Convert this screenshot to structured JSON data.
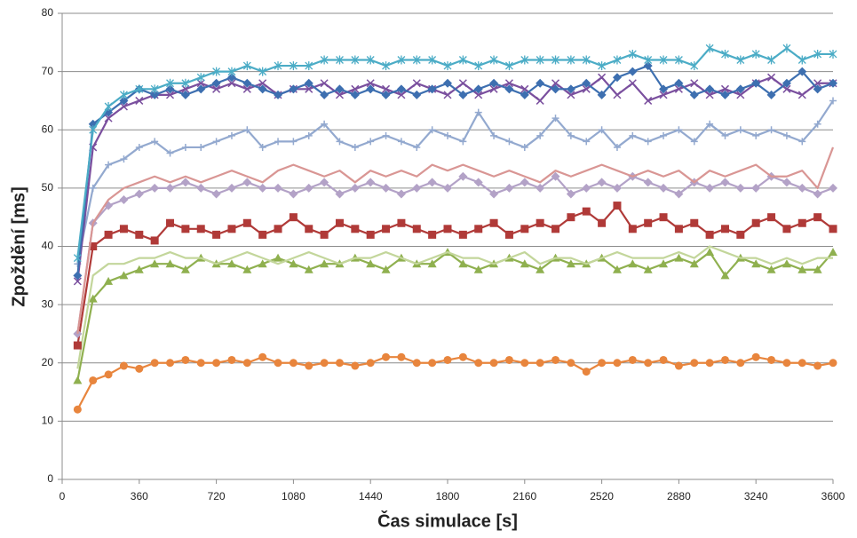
{
  "chart_data": {
    "type": "line",
    "x_label": "Čas simulace [s]",
    "y_label": "Zpoždění [ms]",
    "xlim": [
      0,
      3600
    ],
    "xticks": [
      0,
      360,
      720,
      1080,
      1440,
      1800,
      2160,
      2520,
      2880,
      3240,
      3600
    ],
    "ylim": [
      0,
      80
    ],
    "yticks": [
      0,
      10,
      20,
      30,
      40,
      50,
      60,
      70,
      80
    ],
    "grid": true,
    "x": [
      72,
      144,
      216,
      288,
      360,
      432,
      504,
      576,
      648,
      720,
      792,
      864,
      936,
      1008,
      1080,
      1152,
      1224,
      1296,
      1368,
      1440,
      1512,
      1584,
      1656,
      1728,
      1800,
      1872,
      1944,
      2016,
      2088,
      2160,
      2232,
      2304,
      2376,
      2448,
      2520,
      2592,
      2664,
      2736,
      2808,
      2880,
      2952,
      3024,
      3096,
      3168,
      3240,
      3312,
      3384,
      3456,
      3528,
      3600
    ],
    "series": [
      {
        "color": "#4bacc6",
        "marker": "star",
        "values": [
          38,
          60,
          64,
          66,
          67,
          67,
          68,
          68,
          69,
          70,
          70,
          71,
          70,
          71,
          71,
          71,
          72,
          72,
          72,
          72,
          71,
          72,
          72,
          72,
          71,
          72,
          71,
          72,
          71,
          72,
          72,
          72,
          72,
          72,
          71,
          72,
          73,
          72,
          72,
          72,
          71,
          74,
          73,
          72,
          73,
          72,
          74,
          72,
          73,
          73
        ]
      },
      {
        "color": "#3d6fb0",
        "marker": "diamond",
        "values": [
          35,
          61,
          63,
          65,
          67,
          66,
          67,
          66,
          67,
          68,
          69,
          68,
          67,
          66,
          67,
          68,
          66,
          67,
          66,
          67,
          66,
          67,
          66,
          67,
          68,
          66,
          67,
          68,
          67,
          66,
          68,
          67,
          67,
          68,
          66,
          69,
          70,
          71,
          67,
          68,
          66,
          67,
          66,
          67,
          68,
          66,
          68,
          70,
          67,
          68
        ]
      },
      {
        "color": "#7a4f9e",
        "marker": "x",
        "values": [
          34,
          57,
          62,
          64,
          65,
          66,
          66,
          67,
          68,
          67,
          68,
          67,
          68,
          66,
          67,
          67,
          68,
          66,
          67,
          68,
          67,
          66,
          68,
          67,
          66,
          68,
          66,
          67,
          68,
          67,
          65,
          68,
          66,
          67,
          69,
          66,
          68,
          65,
          66,
          67,
          68,
          66,
          67,
          66,
          68,
          69,
          67,
          66,
          68,
          68
        ]
      },
      {
        "color": "#93a9cf",
        "marker": "plus",
        "values": [
          37,
          50,
          54,
          55,
          57,
          58,
          56,
          57,
          57,
          58,
          59,
          60,
          57,
          58,
          58,
          59,
          61,
          58,
          57,
          58,
          59,
          58,
          57,
          60,
          59,
          58,
          63,
          59,
          58,
          57,
          59,
          62,
          59,
          58,
          60,
          57,
          59,
          58,
          59,
          60,
          58,
          61,
          59,
          60,
          59,
          60,
          59,
          58,
          61,
          65
        ]
      },
      {
        "color": "#d99694",
        "marker": "none",
        "values": [
          25,
          44,
          48,
          50,
          51,
          52,
          51,
          52,
          51,
          52,
          53,
          52,
          51,
          53,
          54,
          53,
          52,
          53,
          51,
          53,
          52,
          53,
          52,
          54,
          53,
          54,
          53,
          52,
          53,
          52,
          51,
          53,
          52,
          53,
          54,
          53,
          52,
          53,
          52,
          53,
          51,
          53,
          52,
          53,
          54,
          52,
          52,
          53,
          50,
          57
        ]
      },
      {
        "color": "#b3a2c7",
        "marker": "diamond",
        "values": [
          25,
          44,
          47,
          48,
          49,
          50,
          50,
          51,
          50,
          49,
          50,
          51,
          50,
          50,
          49,
          50,
          51,
          49,
          50,
          51,
          50,
          49,
          50,
          51,
          50,
          52,
          51,
          49,
          50,
          51,
          50,
          52,
          49,
          50,
          51,
          50,
          52,
          51,
          50,
          49,
          51,
          50,
          51,
          50,
          50,
          52,
          51,
          50,
          49,
          50
        ]
      },
      {
        "color": "#b03a38",
        "marker": "square",
        "values": [
          23,
          40,
          42,
          43,
          42,
          41,
          44,
          43,
          43,
          42,
          43,
          44,
          42,
          43,
          45,
          43,
          42,
          44,
          43,
          42,
          43,
          44,
          43,
          42,
          43,
          42,
          43,
          44,
          42,
          43,
          44,
          43,
          45,
          46,
          44,
          47,
          43,
          44,
          45,
          43,
          44,
          42,
          43,
          42,
          44,
          45,
          43,
          44,
          45,
          43
        ]
      },
      {
        "color": "#c3d69b",
        "marker": "none",
        "values": [
          19,
          35,
          37,
          37,
          38,
          38,
          39,
          38,
          38,
          37,
          38,
          39,
          38,
          37,
          38,
          39,
          38,
          37,
          38,
          38,
          39,
          38,
          37,
          38,
          39,
          38,
          38,
          37,
          38,
          39,
          37,
          38,
          38,
          37,
          38,
          39,
          38,
          38,
          38,
          39,
          38,
          40,
          39,
          38,
          38,
          37,
          38,
          37,
          38,
          38
        ]
      },
      {
        "color": "#8fb04f",
        "marker": "triangle",
        "values": [
          17,
          31,
          34,
          35,
          36,
          37,
          37,
          36,
          38,
          37,
          37,
          36,
          37,
          38,
          37,
          36,
          37,
          37,
          38,
          37,
          36,
          38,
          37,
          37,
          39,
          37,
          36,
          37,
          38,
          37,
          36,
          38,
          37,
          37,
          38,
          36,
          37,
          36,
          37,
          38,
          37,
          39,
          35,
          38,
          37,
          36,
          37,
          36,
          36,
          39
        ]
      },
      {
        "color": "#e8853d",
        "marker": "circle",
        "values": [
          12,
          17,
          18,
          19.5,
          19,
          20,
          20,
          20.5,
          20,
          20,
          20.5,
          20,
          21,
          20,
          20,
          19.5,
          20,
          20,
          19.5,
          20,
          21,
          21,
          20,
          20,
          20.5,
          21,
          20,
          20,
          20.5,
          20,
          20,
          20.5,
          20,
          18.5,
          20,
          20,
          20.5,
          20,
          20.5,
          19.5,
          20,
          20,
          20.5,
          20,
          21,
          20.5,
          20,
          20,
          19.5,
          20
        ]
      }
    ]
  }
}
